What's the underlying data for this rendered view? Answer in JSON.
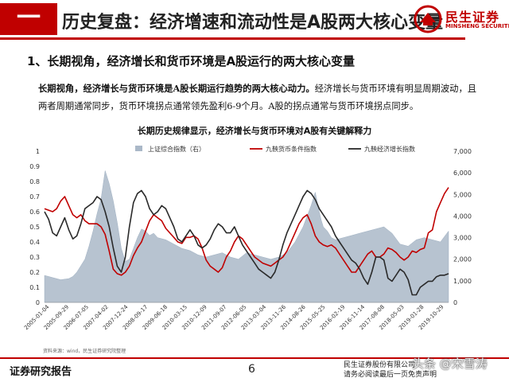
{
  "header": {
    "section_tag": "一",
    "title": "历史复盘：经济增速和流动性是A股两大核心变量",
    "logo_cn": "民生证券",
    "logo_en": "MINSHENG SECURITIES"
  },
  "subtitle": "1、长期视角，经济增长和货币环境是A股运行的两大核心变量",
  "description": {
    "bold": "长期视角，经济增长与货币环境是A股长期运行趋势的两大核心动力。",
    "text": "经济增长与货币环境有明显周期波动，且两者周期通常同步，货币环境拐点通常领先盈利6-9个月。A股的拐点通常与货币环境拐点同步。"
  },
  "source": "资料来源：wind，民生证券研究院整理",
  "footer": {
    "left": "证券研究报告",
    "page": "6",
    "right_line1": "民生证券股份有限公司",
    "right_line2": "请务必阅读最后一页免责声明",
    "watermark": "头条 @宋雪涛"
  },
  "colors": {
    "brand_red": "#c00000",
    "area": "#aab8c8",
    "money_line": "#c00000",
    "growth_line": "#2a2a2a"
  },
  "chart_data": {
    "type": "line",
    "title": "长期历史规律显示，经济增长与货币环境对A股有关键解释力",
    "legend": [
      "上证综合指数（右）",
      "九鞅货币条件指数",
      "九鞅经济增长指数"
    ],
    "legend_position": "top",
    "x_labels": [
      "2005-01-04",
      "2005-09-29",
      "2006-07-05",
      "2007-04-02",
      "2007-12-24",
      "2008-09-17",
      "2009-06-18",
      "2010-03-15",
      "2010-12-09",
      "2011-09-07",
      "2012-06-05",
      "2013-03-04",
      "2013-11-26",
      "2014-08-26",
      "2015-05-25",
      "2016-02-19",
      "2016-11-14",
      "2017-08-08",
      "2018-05-03",
      "2019-01-28",
      "2019-10-29"
    ],
    "y_left": {
      "min": 0,
      "max": 1,
      "ticks": [
        0,
        0.1,
        0.2,
        0.3,
        0.4,
        0.5,
        0.6,
        0.7,
        0.8,
        0.9,
        1
      ]
    },
    "y_right": {
      "min": 0,
      "max": 7000,
      "ticks": [
        0,
        1000,
        2000,
        3000,
        4000,
        5000,
        6000,
        7000
      ]
    },
    "series": [
      {
        "name": "上证综合指数（右）",
        "kind": "area",
        "axis": "right",
        "t": [
          0,
          0.02,
          0.04,
          0.06,
          0.07,
          0.08,
          0.09,
          0.1,
          0.11,
          0.12,
          0.13,
          0.14,
          0.15,
          0.16,
          0.17,
          0.18,
          0.19,
          0.2,
          0.21,
          0.22,
          0.23,
          0.24,
          0.25,
          0.26,
          0.27,
          0.28,
          0.3,
          0.32,
          0.34,
          0.36,
          0.38,
          0.4,
          0.42,
          0.44,
          0.46,
          0.48,
          0.5,
          0.52,
          0.54,
          0.56,
          0.58,
          0.6,
          0.62,
          0.64,
          0.66,
          0.67,
          0.68,
          0.685,
          0.69,
          0.7,
          0.71,
          0.72,
          0.74,
          0.76,
          0.78,
          0.8,
          0.82,
          0.84,
          0.86,
          0.88,
          0.9,
          0.92,
          0.94,
          0.96,
          0.98,
          1.0
        ],
        "values": [
          1250,
          1150,
          1050,
          1100,
          1200,
          1400,
          1700,
          2000,
          2600,
          3300,
          4100,
          4800,
          6100,
          5500,
          4700,
          3700,
          2500,
          1900,
          2000,
          2500,
          3000,
          3400,
          3300,
          3100,
          3200,
          3000,
          2900,
          2700,
          2500,
          2400,
          2200,
          2100,
          2200,
          2300,
          2100,
          2000,
          2300,
          2200,
          2100,
          2000,
          2100,
          2300,
          2800,
          3500,
          4500,
          5100,
          4200,
          3800,
          3500,
          3300,
          3000,
          2900,
          3000,
          3100,
          3200,
          3300,
          3400,
          3500,
          3200,
          2700,
          2600,
          2900,
          3000,
          2900,
          2800,
          3300
        ]
      },
      {
        "name": "九鞅货币条件指数",
        "kind": "line",
        "axis": "left",
        "t": [
          0,
          0.01,
          0.02,
          0.03,
          0.04,
          0.05,
          0.06,
          0.07,
          0.08,
          0.09,
          0.1,
          0.11,
          0.12,
          0.13,
          0.14,
          0.15,
          0.16,
          0.17,
          0.18,
          0.19,
          0.2,
          0.21,
          0.22,
          0.23,
          0.24,
          0.25,
          0.26,
          0.27,
          0.28,
          0.29,
          0.3,
          0.31,
          0.32,
          0.33,
          0.34,
          0.35,
          0.36,
          0.37,
          0.38,
          0.39,
          0.4,
          0.41,
          0.42,
          0.43,
          0.44,
          0.45,
          0.46,
          0.47,
          0.48,
          0.49,
          0.5,
          0.51,
          0.52,
          0.53,
          0.54,
          0.55,
          0.56,
          0.57,
          0.58,
          0.59,
          0.6,
          0.61,
          0.62,
          0.63,
          0.64,
          0.65,
          0.66,
          0.67,
          0.68,
          0.69,
          0.7,
          0.71,
          0.72,
          0.73,
          0.74,
          0.75,
          0.76,
          0.77,
          0.78,
          0.79,
          0.8,
          0.81,
          0.82,
          0.83,
          0.84,
          0.85,
          0.86,
          0.87,
          0.88,
          0.89,
          0.9,
          0.91,
          0.92,
          0.93,
          0.94,
          0.95,
          0.96,
          0.97,
          0.98,
          0.99,
          1.0
        ],
        "values": [
          0.62,
          0.61,
          0.6,
          0.62,
          0.67,
          0.7,
          0.64,
          0.58,
          0.56,
          0.58,
          0.54,
          0.52,
          0.52,
          0.52,
          0.5,
          0.45,
          0.34,
          0.22,
          0.19,
          0.18,
          0.2,
          0.24,
          0.31,
          0.36,
          0.4,
          0.47,
          0.54,
          0.58,
          0.56,
          0.54,
          0.49,
          0.46,
          0.43,
          0.4,
          0.39,
          0.43,
          0.43,
          0.44,
          0.42,
          0.36,
          0.28,
          0.24,
          0.22,
          0.2,
          0.23,
          0.3,
          0.34,
          0.4,
          0.44,
          0.42,
          0.38,
          0.34,
          0.3,
          0.28,
          0.26,
          0.25,
          0.24,
          0.26,
          0.28,
          0.3,
          0.34,
          0.4,
          0.46,
          0.52,
          0.56,
          0.58,
          0.52,
          0.44,
          0.4,
          0.38,
          0.37,
          0.38,
          0.36,
          0.32,
          0.28,
          0.24,
          0.2,
          0.2,
          0.24,
          0.28,
          0.32,
          0.34,
          0.3,
          0.3,
          0.32,
          0.36,
          0.35,
          0.33,
          0.3,
          0.28,
          0.3,
          0.34,
          0.33,
          0.35,
          0.36,
          0.46,
          0.48,
          0.6,
          0.66,
          0.72,
          0.76
        ]
      },
      {
        "name": "九鞅经济增长指数",
        "kind": "line",
        "axis": "left",
        "t": [
          0,
          0.01,
          0.02,
          0.03,
          0.04,
          0.05,
          0.06,
          0.07,
          0.08,
          0.09,
          0.1,
          0.11,
          0.12,
          0.13,
          0.14,
          0.15,
          0.16,
          0.17,
          0.18,
          0.19,
          0.2,
          0.21,
          0.22,
          0.23,
          0.24,
          0.25,
          0.26,
          0.27,
          0.28,
          0.29,
          0.3,
          0.31,
          0.32,
          0.33,
          0.34,
          0.35,
          0.36,
          0.37,
          0.38,
          0.39,
          0.4,
          0.41,
          0.42,
          0.43,
          0.44,
          0.45,
          0.46,
          0.47,
          0.48,
          0.49,
          0.5,
          0.51,
          0.52,
          0.53,
          0.54,
          0.55,
          0.56,
          0.57,
          0.58,
          0.59,
          0.6,
          0.61,
          0.62,
          0.63,
          0.64,
          0.65,
          0.66,
          0.67,
          0.68,
          0.69,
          0.7,
          0.71,
          0.72,
          0.73,
          0.74,
          0.75,
          0.76,
          0.77,
          0.78,
          0.79,
          0.8,
          0.81,
          0.82,
          0.83,
          0.84,
          0.85,
          0.86,
          0.87,
          0.88,
          0.89,
          0.9,
          0.91,
          0.92,
          0.93,
          0.94,
          0.95,
          0.96,
          0.97,
          0.98,
          0.99,
          1.0
        ],
        "values": [
          0.6,
          0.55,
          0.46,
          0.44,
          0.5,
          0.56,
          0.48,
          0.42,
          0.44,
          0.52,
          0.62,
          0.64,
          0.66,
          0.7,
          0.68,
          0.6,
          0.5,
          0.36,
          0.24,
          0.2,
          0.3,
          0.5,
          0.66,
          0.72,
          0.74,
          0.7,
          0.62,
          0.58,
          0.6,
          0.64,
          0.62,
          0.56,
          0.5,
          0.42,
          0.4,
          0.44,
          0.48,
          0.44,
          0.38,
          0.36,
          0.38,
          0.42,
          0.48,
          0.52,
          0.5,
          0.46,
          0.46,
          0.5,
          0.44,
          0.38,
          0.34,
          0.3,
          0.26,
          0.22,
          0.2,
          0.18,
          0.16,
          0.2,
          0.28,
          0.38,
          0.46,
          0.52,
          0.58,
          0.64,
          0.7,
          0.74,
          0.72,
          0.68,
          0.62,
          0.58,
          0.54,
          0.5,
          0.44,
          0.4,
          0.36,
          0.32,
          0.28,
          0.26,
          0.22,
          0.16,
          0.12,
          0.2,
          0.3,
          0.3,
          0.28,
          0.16,
          0.14,
          0.18,
          0.22,
          0.2,
          0.15,
          0.05,
          0.05,
          0.1,
          0.12,
          0.14,
          0.14,
          0.17,
          0.18,
          0.18,
          0.19
        ]
      }
    ]
  }
}
